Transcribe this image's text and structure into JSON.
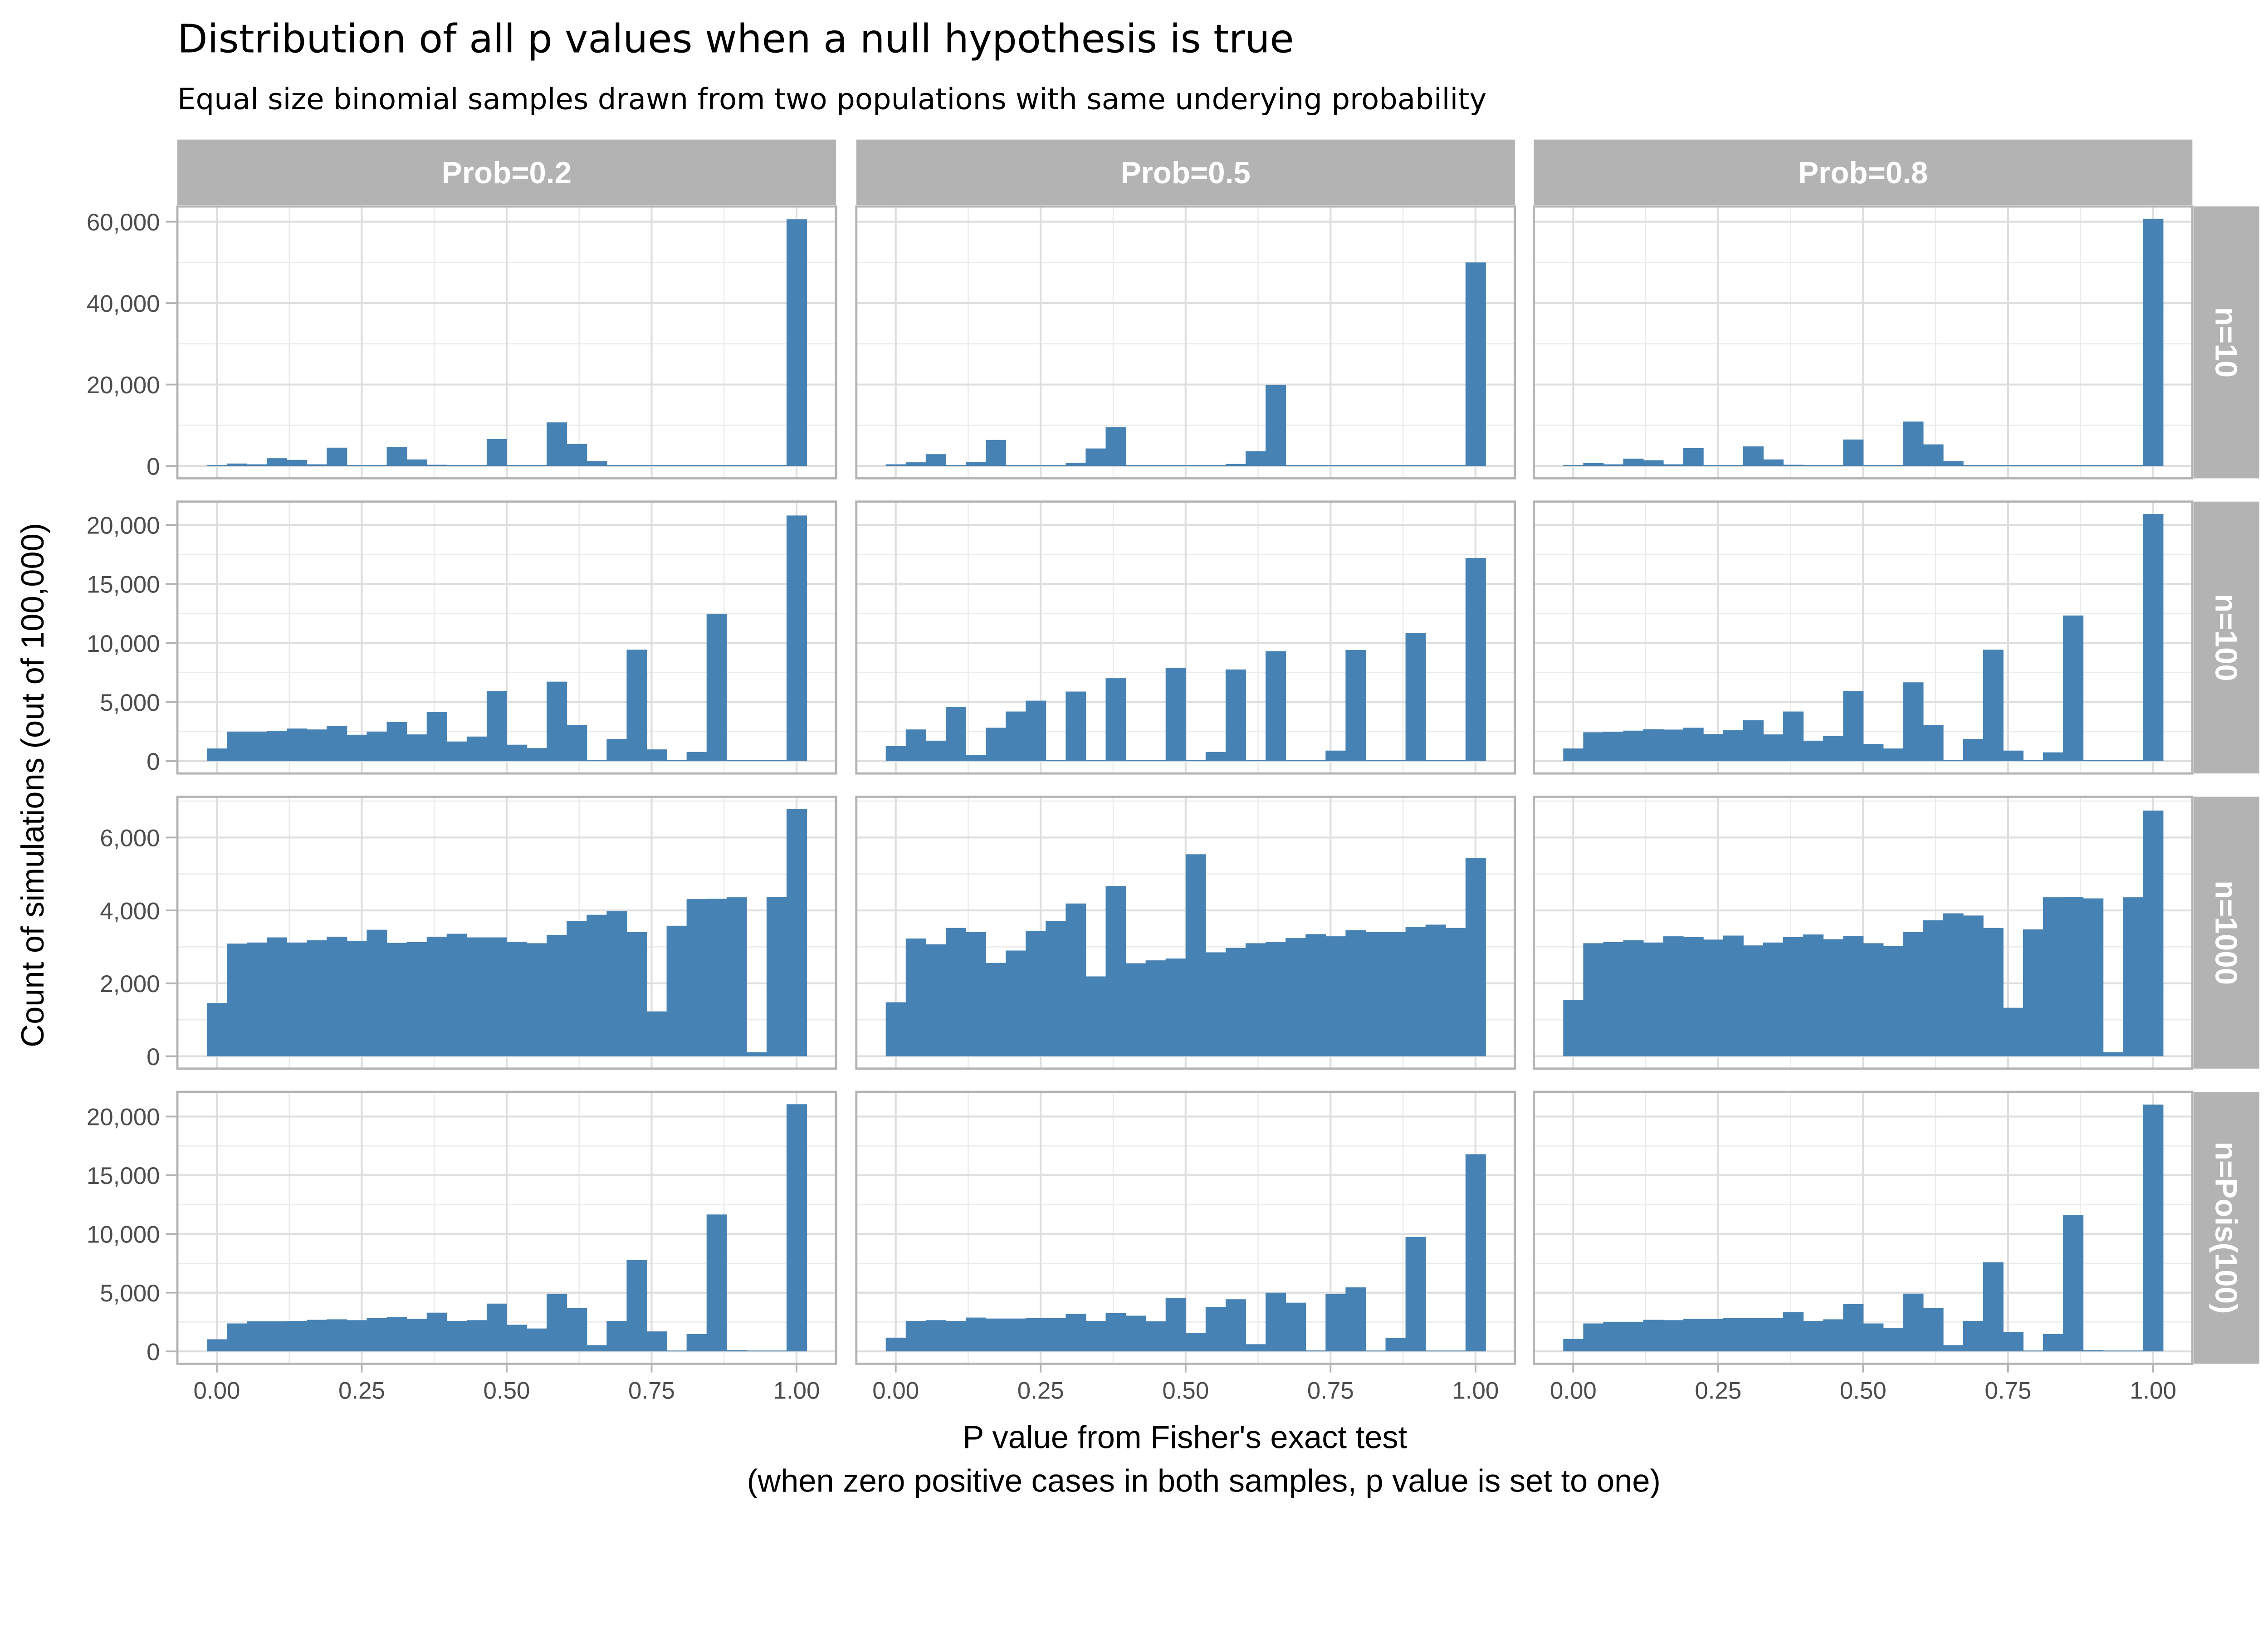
{
  "chart_data": {
    "type": "bar",
    "title": "Distribution of all p values when a null hypothesis is true",
    "subtitle": "Equal size binomial samples drawn from two populations with same underying probability",
    "xlabel": "P value from Fisher's exact test",
    "xlabel_line2": "(when zero positive cases in both samples, p value is set to one)",
    "ylabel": "Count of simulations (out of 100,000)",
    "bar_color": "#4682b4",
    "grid": true,
    "bins": 30,
    "bin_center_range": [
      0,
      1
    ],
    "x_ticks": [
      "0.00",
      "0.25",
      "0.50",
      "0.75",
      "1.00"
    ],
    "col_facets": [
      "Prob=0.2",
      "Prob=0.5",
      "Prob=0.8"
    ],
    "row_facets": [
      {
        "label": "n=10",
        "y_ticks": [
          "0",
          "20,000",
          "40,000",
          "60,000"
        ],
        "y_tick_values": [
          0,
          20000,
          40000,
          60000
        ]
      },
      {
        "label": "n=100",
        "y_ticks": [
          "0",
          "5,000",
          "10,000",
          "15,000",
          "20,000"
        ],
        "y_tick_values": [
          0,
          5000,
          10000,
          15000,
          20000
        ]
      },
      {
        "label": "n=1000",
        "y_ticks": [
          "0",
          "2,000",
          "4,000",
          "6,000"
        ],
        "y_tick_values": [
          0,
          2000,
          4000,
          6000
        ]
      },
      {
        "label": "n=Pois(100)",
        "y_ticks": [
          "0",
          "5,000",
          "10,000",
          "15,000",
          "20,000"
        ],
        "y_tick_values": [
          0,
          5000,
          10000,
          15000,
          20000
        ]
      }
    ],
    "panels": [
      [
        [
          200,
          600,
          400,
          1900,
          1500,
          400,
          4500,
          0,
          0,
          4700,
          1600,
          300,
          0,
          0,
          6600,
          0,
          0,
          10700,
          5400,
          1200,
          0,
          0,
          0,
          0,
          0,
          0,
          0,
          0,
          0,
          60600
        ],
        [
          400,
          900,
          2900,
          100,
          1000,
          6400,
          100,
          0,
          0,
          800,
          4300,
          9500,
          0,
          0,
          0,
          0,
          0,
          500,
          3600,
          19900,
          0,
          0,
          0,
          0,
          0,
          0,
          0,
          0,
          0,
          50000
        ],
        [
          200,
          700,
          400,
          1800,
          1400,
          400,
          4400,
          0,
          0,
          4800,
          1600,
          300,
          0,
          0,
          6500,
          0,
          0,
          10900,
          5300,
          1200,
          0,
          0,
          0,
          0,
          0,
          0,
          0,
          0,
          0,
          60700
        ]
      ],
      [
        [
          1070,
          2500,
          2500,
          2550,
          2760,
          2680,
          2970,
          2230,
          2500,
          3310,
          2260,
          4160,
          1660,
          2080,
          5920,
          1390,
          1100,
          6730,
          3070,
          100,
          1870,
          9440,
          990,
          30,
          780,
          12480,
          0,
          0,
          0,
          20800
        ],
        [
          1280,
          2680,
          1730,
          4590,
          530,
          2830,
          4200,
          5120,
          0,
          5890,
          0,
          7020,
          0,
          0,
          7910,
          0,
          780,
          7760,
          0,
          9310,
          0,
          0,
          890,
          9410,
          0,
          0,
          10860,
          0,
          0,
          17200
        ],
        [
          1070,
          2440,
          2470,
          2580,
          2700,
          2670,
          2830,
          2290,
          2610,
          3460,
          2260,
          4200,
          1730,
          2120,
          5920,
          1450,
          1070,
          6670,
          3070,
          100,
          1870,
          9440,
          890,
          30,
          740,
          12330,
          0,
          0,
          0,
          20930
        ]
      ],
      [
        [
          1460,
          3090,
          3120,
          3260,
          3120,
          3180,
          3280,
          3160,
          3470,
          3110,
          3130,
          3280,
          3360,
          3260,
          3260,
          3140,
          3100,
          3330,
          3710,
          3880,
          3980,
          3410,
          1230,
          3580,
          4310,
          4320,
          4360,
          110,
          4370,
          6780
        ],
        [
          1480,
          3230,
          3070,
          3520,
          3410,
          2560,
          2900,
          3430,
          3710,
          4190,
          2190,
          4670,
          2550,
          2630,
          2680,
          5540,
          2850,
          2970,
          3100,
          3140,
          3240,
          3350,
          3290,
          3460,
          3410,
          3410,
          3550,
          3610,
          3520,
          5440
        ],
        [
          1550,
          3100,
          3130,
          3180,
          3120,
          3290,
          3270,
          3200,
          3310,
          3040,
          3120,
          3270,
          3340,
          3210,
          3300,
          3100,
          3020,
          3410,
          3730,
          3920,
          3860,
          3520,
          1330,
          3480,
          4360,
          4370,
          4330,
          110,
          4360,
          6740
        ]
      ],
      [
        [
          1030,
          2380,
          2560,
          2560,
          2590,
          2690,
          2730,
          2660,
          2830,
          2910,
          2770,
          3300,
          2590,
          2660,
          4070,
          2270,
          1950,
          4890,
          3680,
          530,
          2590,
          7770,
          1700,
          30,
          1480,
          11660,
          110,
          30,
          30,
          21050
        ],
        [
          1170,
          2590,
          2660,
          2590,
          2880,
          2800,
          2800,
          2830,
          2830,
          3190,
          2590,
          3260,
          3040,
          2560,
          4540,
          1590,
          3790,
          4440,
          610,
          5000,
          4150,
          80,
          4890,
          5450,
          30,
          1140,
          9750,
          30,
          30,
          16790
        ],
        [
          1060,
          2380,
          2480,
          2480,
          2690,
          2660,
          2770,
          2770,
          2830,
          2830,
          2830,
          3330,
          2590,
          2730,
          4040,
          2380,
          2010,
          4920,
          3680,
          530,
          2590,
          7590,
          1670,
          30,
          1480,
          11630,
          110,
          30,
          30,
          21020
        ]
      ]
    ]
  }
}
